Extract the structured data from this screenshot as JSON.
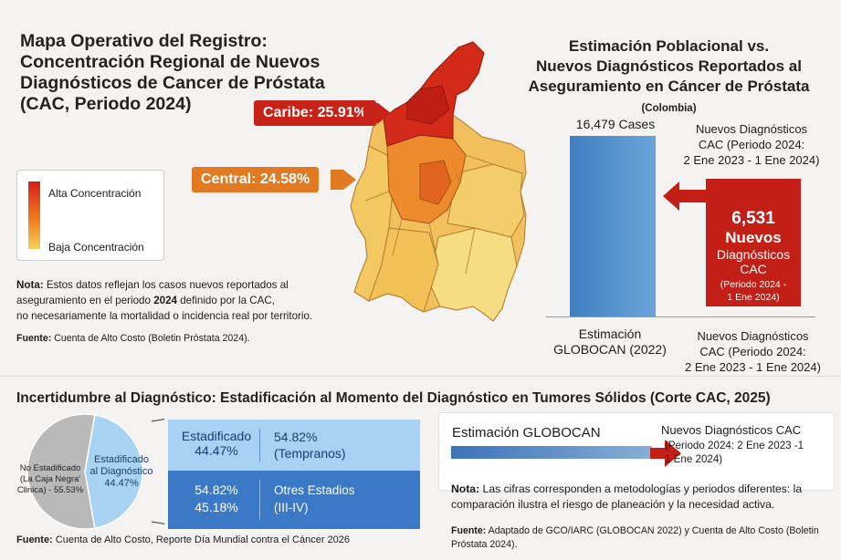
{
  "map_section": {
    "title_line1": "Mapa Operativo del Registro:",
    "title_line2": "Concentración Regional de Nuevos",
    "title_line3": "Diagnósticos de Cancer de Próstata",
    "title_line4": "(CAC, Periodo 2024)",
    "callout_caribe": "Caribe: 25.91%",
    "callout_central": "Central: 24.58%",
    "legend_high": "Alta Concentración",
    "legend_low": "Baja Concentración",
    "nota_label": "Nota:",
    "nota_text1": " Estos datos reflejan los casos nuevos reportados al",
    "nota_text2a": "aseguramiento en el periodo ",
    "nota_year": "2024",
    "nota_text2b": " definido por la CAC,",
    "nota_text3": "no necesariamente la mortalidad o incidencia real por territorio.",
    "fuente_label": "Fuente:",
    "fuente_text": " Cuenta de Alto Costo (Boletin Próstata 2024)."
  },
  "comparison": {
    "title_line1": "Estimación Poblacional vs.",
    "title_line2": "Nuevos Diagnósticos Reportados al",
    "title_line3": "Aseguramiento en Cáncer de Próstata",
    "title_country": "(Colombia)",
    "bar_label": "16,479 Cases",
    "cac_top_line1": "Nuevos Diagnósticos",
    "cac_top_line2": "CAC (Periodo 2024:",
    "cac_top_line3": "2 Ene 2023 -   1 Ene 2024)",
    "red_number": "6,531",
    "red_nuevos": "Nuevos",
    "red_diag": "Diagnósticos",
    "red_cac": "CAC",
    "red_period1": "(Periodo 2024 -",
    "red_period2": "1 Ene 2024)",
    "est_line1": "Estimación",
    "est_line2": "GLOBOCAN (2022)",
    "cac_bot_line1": "Nuevos Diagnósticos",
    "cac_bot_line2": "CAC (Periodo 2024:",
    "cac_bot_line3": "2 Ene 2023 - 1 Ene 2024)"
  },
  "staging": {
    "title": "Incertidumbre al Diagnóstico: Estadificación al Momento del Diagnóstico en Tumores Sólidos (Corte CAC, 2025)",
    "pie_ne_line1": "No Estadificado",
    "pie_ne_line2": "(La Caja Negra'",
    "pie_ne_line3": "Clinica) - 55.53%",
    "pie_e_line1": "Estadificado",
    "pie_e_line2": "al Diagnóstico",
    "pie_e_line3": "44.47%",
    "row1_a_line1": "Estadificado",
    "row1_a_line2": "44.47%",
    "row1_b_line1": "54.82%",
    "row1_b_line2": "(Tempranos)",
    "row2_a_line1": "54.82%",
    "row2_a_line2": "45.18%",
    "row2_b_line1": "Otres Estadios",
    "row2_b_line2": "(III-IV)",
    "fuente_label": "Fuente:",
    "fuente_text": " Cuenta de Alto Costo, Reporte Día Mundial contra el Cáncer 2026"
  },
  "globocan_panel": {
    "label": "Estimación GLOBOCAN",
    "cac_line1": "Nuevos Diagnósticos CAC",
    "period_line1": "(Periodo 2024: 2 Ene 2023 -1",
    "period_line2": "1 Ene 2024)",
    "nota_label": "Nota:",
    "nota_text": " Las cifras corresponden a metodologías y periodos diferentes: la comparación ilustra el riesgo de planeación y la necesidad activa.",
    "fuente_label": "Fuente:",
    "fuente_text": " Adaptado de GCO/IARC (GLOBOCAN 2022) y Cuenta de Alto Costo (Boletin Próstata 2024)."
  },
  "colors": {
    "red": "#c41f17",
    "orange": "#e27a22",
    "blue": "#3f7fc2",
    "light_blue": "#a8d2f4"
  },
  "chart_data": [
    {
      "type": "bar",
      "title": "Estimación Poblacional vs. Nuevos Diagnósticos Reportados al Aseguramiento en Cáncer de Próstata (Colombia)",
      "categories": [
        "Estimación GLOBOCAN (2022)",
        "Nuevos Diagnósticos CAC (Periodo 2024: 2 Ene 2023 - 1 Ene 2024)"
      ],
      "values": [
        16479,
        6531
      ],
      "ylim": [
        0,
        16479
      ]
    },
    {
      "type": "pie",
      "title": "Estadificación al Momento del Diagnóstico",
      "labels": [
        "No Estadificado (La Caja Negra' Clinica)",
        "Estadificado al Diagnóstico"
      ],
      "values": [
        55.53,
        44.47
      ]
    },
    {
      "type": "map",
      "title": "Concentración Regional de Nuevos Diagnósticos de Cancer de Próstata (CAC, Periodo 2024)",
      "regions": [
        {
          "name": "Caribe",
          "value": 25.91
        },
        {
          "name": "Central",
          "value": 24.58
        }
      ]
    }
  ]
}
